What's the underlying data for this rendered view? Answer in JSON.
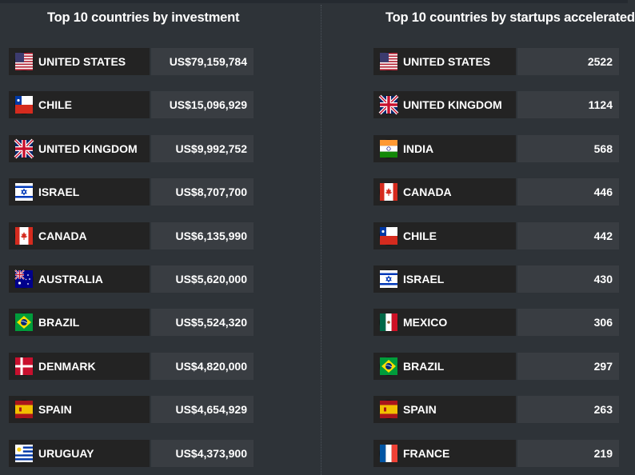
{
  "chart_data": [
    {
      "type": "table",
      "title": "Top 10 countries by investment",
      "rows": [
        {
          "country": "UNITED STATES",
          "flag": "flag-us-icon",
          "value": "US$79,159,784"
        },
        {
          "country": "CHILE",
          "flag": "flag-cl-icon",
          "value": "US$15,096,929"
        },
        {
          "country": "UNITED KINGDOM",
          "flag": "flag-gb-icon",
          "value": "US$9,992,752"
        },
        {
          "country": "ISRAEL",
          "flag": "flag-il-icon",
          "value": "US$8,707,700"
        },
        {
          "country": "CANADA",
          "flag": "flag-ca-icon",
          "value": "US$6,135,990"
        },
        {
          "country": "AUSTRALIA",
          "flag": "flag-au-icon",
          "value": "US$5,620,000"
        },
        {
          "country": "BRAZIL",
          "flag": "flag-br-icon",
          "value": "US$5,524,320"
        },
        {
          "country": "DENMARK",
          "flag": "flag-dk-icon",
          "value": "US$4,820,000"
        },
        {
          "country": "SPAIN",
          "flag": "flag-es-icon",
          "value": "US$4,654,929"
        },
        {
          "country": "URUGUAY",
          "flag": "flag-uy-icon",
          "value": "US$4,373,900"
        }
      ]
    },
    {
      "type": "table",
      "title": "Top 10 countries by startups accelerated",
      "rows": [
        {
          "country": "UNITED STATES",
          "flag": "flag-us-icon",
          "value": "2522"
        },
        {
          "country": "UNITED KINGDOM",
          "flag": "flag-gb-icon",
          "value": "1124"
        },
        {
          "country": "INDIA",
          "flag": "flag-in-icon",
          "value": "568"
        },
        {
          "country": "CANADA",
          "flag": "flag-ca-icon",
          "value": "446"
        },
        {
          "country": "CHILE",
          "flag": "flag-cl-icon",
          "value": "442"
        },
        {
          "country": "ISRAEL",
          "flag": "flag-il-icon",
          "value": "430"
        },
        {
          "country": "MEXICO",
          "flag": "flag-mx-icon",
          "value": "306"
        },
        {
          "country": "BRAZIL",
          "flag": "flag-br-icon",
          "value": "297"
        },
        {
          "country": "SPAIN",
          "flag": "flag-es-icon",
          "value": "263"
        },
        {
          "country": "FRANCE",
          "flag": "flag-fr-icon",
          "value": "219"
        }
      ]
    }
  ],
  "colors": {
    "background": "#2e3338",
    "name_cell": "#232323",
    "value_cell": "#393d42",
    "text": "#ffffff"
  }
}
